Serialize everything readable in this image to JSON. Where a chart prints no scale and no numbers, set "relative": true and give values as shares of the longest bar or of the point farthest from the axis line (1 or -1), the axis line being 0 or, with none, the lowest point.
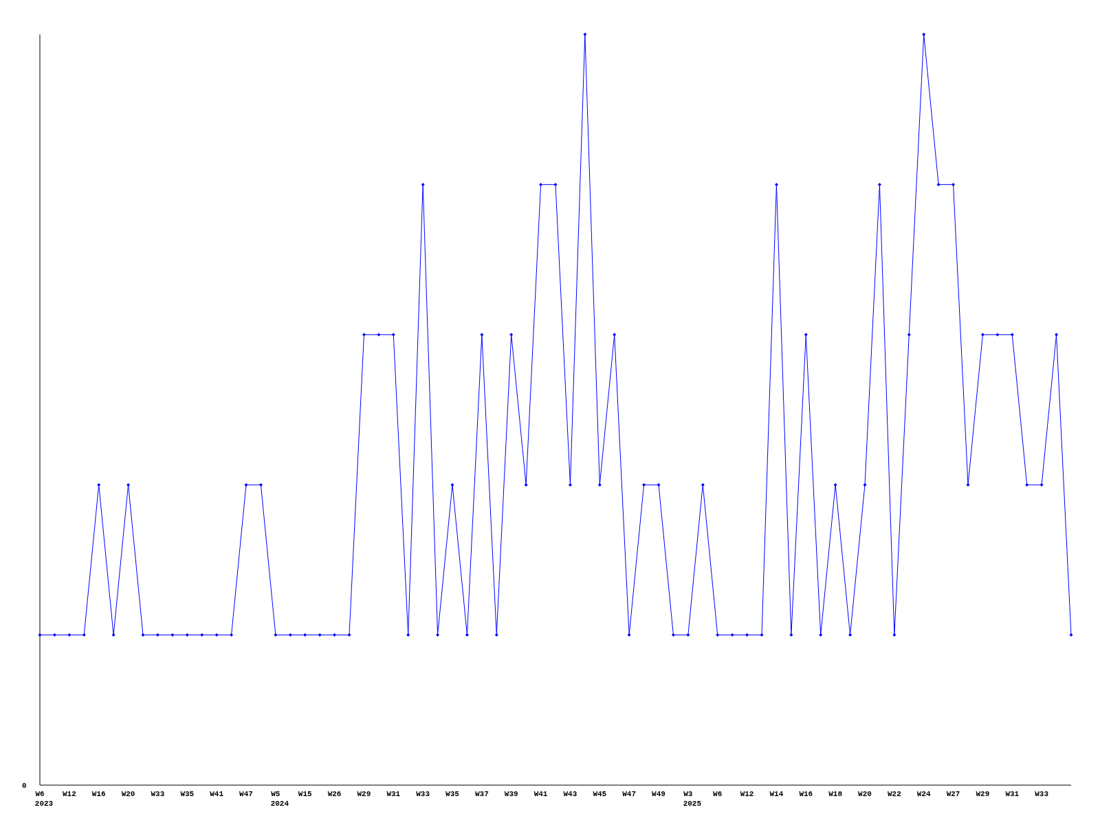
{
  "chart_data": {
    "type": "line",
    "relative": true,
    "marker": "diamond",
    "line_style": "solid",
    "annotations": [
      "0"
    ],
    "categories": [
      "W6\n2023",
      null,
      "W12",
      null,
      "W16",
      null,
      "W20",
      null,
      "W33",
      null,
      "W35",
      null,
      "W41",
      null,
      "W47",
      null,
      "W5\n2024",
      null,
      "W15",
      null,
      "W26",
      null,
      "W29",
      null,
      "W31",
      null,
      "W33",
      null,
      "W35",
      null,
      "W37",
      null,
      "W39",
      null,
      "W41",
      null,
      "W43",
      null,
      "W45",
      null,
      "W47",
      null,
      "W49",
      null,
      "W3\n2025",
      null,
      "W6",
      null,
      "W12",
      null,
      "W14",
      null,
      "W16",
      null,
      "W18",
      null,
      "W20",
      null,
      "W22",
      null,
      "W24",
      null,
      "W27",
      null,
      "W29",
      null,
      "W31",
      null,
      "W33",
      null,
      null
    ],
    "series": [
      {
        "color": "#0000ff",
        "values": [
          0.2,
          0.2,
          0.2,
          0.2,
          0.4,
          0.2,
          0.4,
          0.2,
          0.2,
          0.2,
          0.2,
          0.2,
          0.2,
          0.2,
          0.4,
          0.4,
          0.2,
          0.2,
          0.2,
          0.2,
          0.2,
          0.2,
          0.6,
          0.6,
          0.6,
          0.2,
          0.8,
          0.2,
          0.4,
          0.2,
          0.6,
          0.2,
          0.6,
          0.4,
          0.8,
          0.8,
          0.4,
          1.0,
          0.4,
          0.6,
          0.2,
          0.4,
          0.4,
          0.2,
          0.2,
          0.4,
          0.2,
          0.2,
          0.2,
          0.2,
          0.8,
          0.2,
          0.6,
          0.2,
          0.4,
          0.2,
          0.4,
          0.8,
          0.2,
          0.6,
          1.0,
          0.8,
          0.8,
          0.4,
          0.6,
          0.6,
          0.6,
          0.4,
          0.4,
          0.6,
          0.2
        ]
      }
    ]
  }
}
